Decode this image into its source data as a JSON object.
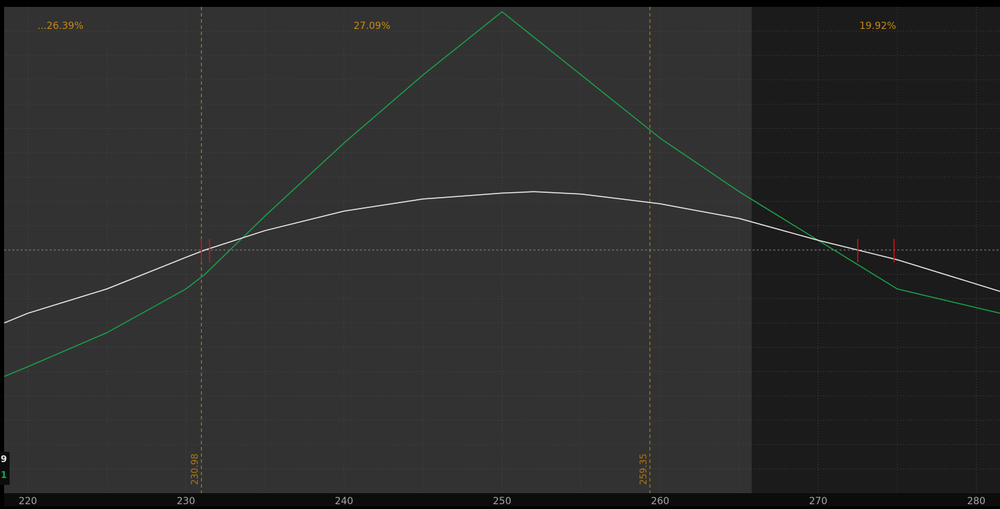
{
  "chart_data": {
    "type": "line",
    "x_range": [
      218.5,
      281.5
    ],
    "y_range": [
      0,
      100
    ],
    "x_ticks": [
      220,
      230,
      240,
      250,
      260,
      270,
      280
    ],
    "grid": true,
    "colors": {
      "background_main": "#323232",
      "background_future": "#1b1b1b",
      "axis_band": "#0c0c0c",
      "grid": "#4a4a4a",
      "zero_line": "#8a8a8a",
      "expiration_curve": "#1aa34a",
      "current_curve": "#ececec",
      "breakeven_marker": "#e01010",
      "expected_move_line": "#c88a12",
      "text_gold": "#c88a12",
      "text_gray": "#a8a8a8"
    },
    "shaded_region_start_x": 265.8,
    "zero_y": 50,
    "vertical_markers": [
      {
        "x": 230.98,
        "label": "230.98"
      },
      {
        "x": 259.35,
        "label": "259.35"
      }
    ],
    "zone_labels": [
      {
        "x": 222.0,
        "text": "...26.39%"
      },
      {
        "x": 242.0,
        "text": "27.09%"
      },
      {
        "x": 274.0,
        "text": "19.92%"
      }
    ],
    "breakeven_markers": [
      230.98,
      231.5,
      272.5,
      274.8
    ],
    "series": [
      {
        "x": [
          218.5,
          220,
          225,
          230,
          231.2,
          235,
          240,
          245,
          250,
          255,
          260,
          265,
          270,
          275,
          281.5
        ],
        "values": [
          24,
          26,
          33,
          42,
          45,
          57,
          72,
          86,
          99,
          86,
          73,
          62,
          52,
          42,
          37
        ]
      },
      {
        "x": [
          218.5,
          220,
          225,
          230,
          231.2,
          235,
          240,
          245,
          250,
          252,
          255,
          260,
          265,
          270,
          275,
          281.5
        ],
        "values": [
          35,
          37,
          42,
          48.5,
          50,
          54,
          58,
          60.5,
          61.7,
          62,
          61.5,
          59.5,
          56.5,
          52,
          48,
          41.5
        ]
      }
    ],
    "left_edge_labels": [
      {
        "text": "9",
        "color": "#e6e6e6"
      },
      {
        "text": "1",
        "color": "#1aa34a"
      }
    ]
  }
}
